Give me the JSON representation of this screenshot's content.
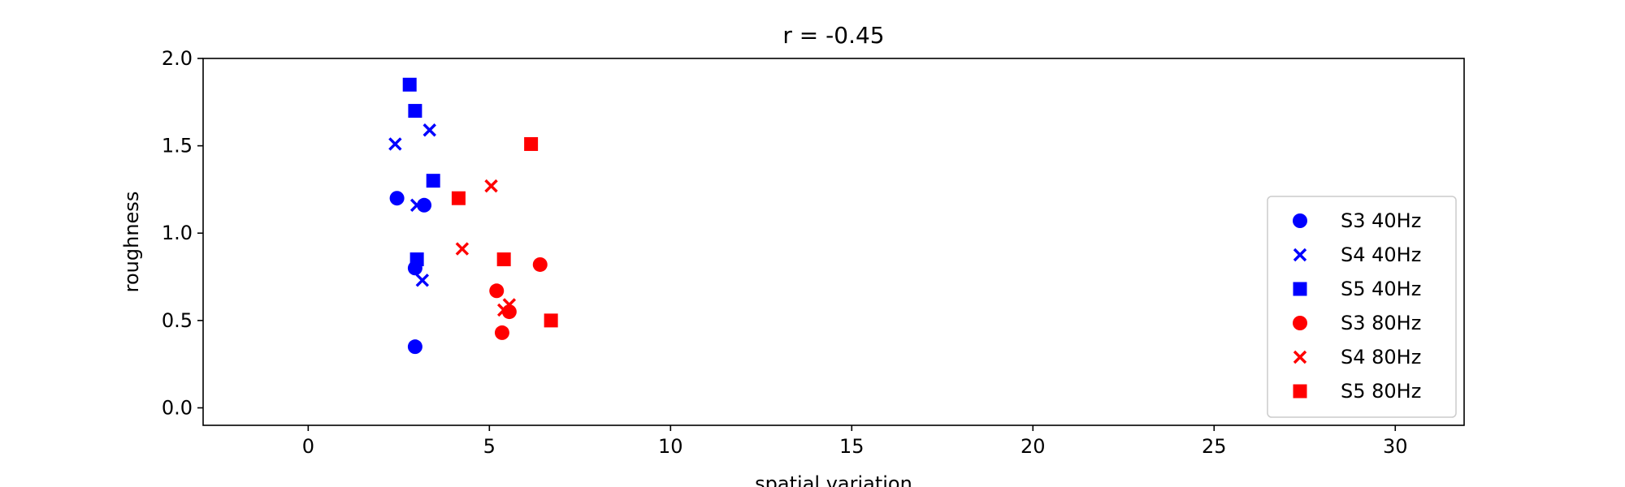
{
  "chart_data": {
    "type": "scatter",
    "title": "r = -0.45",
    "xlabel": "spatial variation",
    "ylabel": "roughness",
    "xlim": [
      -2.9,
      31.9
    ],
    "ylim": [
      -0.1,
      2.0
    ],
    "x_ticks": [
      0,
      5,
      10,
      15,
      20,
      25,
      30
    ],
    "y_ticks": [
      0.0,
      0.5,
      1.0,
      1.5,
      2.0
    ],
    "x_tick_labels": [
      "0",
      "5",
      "10",
      "15",
      "20",
      "25",
      "30"
    ],
    "y_tick_labels": [
      "0.0",
      "0.5",
      "1.0",
      "1.5",
      "2.0"
    ],
    "grid": false,
    "legend_position": "lower right",
    "series": [
      {
        "name": "S3 40Hz",
        "marker": "circle",
        "color": "#0000ff",
        "points": [
          [
            2.45,
            1.2
          ],
          [
            3.2,
            1.16
          ],
          [
            2.95,
            0.8
          ],
          [
            2.95,
            0.35
          ]
        ]
      },
      {
        "name": "S4 40Hz",
        "marker": "x",
        "color": "#0000ff",
        "points": [
          [
            2.4,
            1.51
          ],
          [
            3.35,
            1.59
          ],
          [
            3.0,
            1.16
          ],
          [
            3.15,
            0.73
          ]
        ]
      },
      {
        "name": "S5 40Hz",
        "marker": "square",
        "color": "#0000ff",
        "points": [
          [
            2.8,
            1.85
          ],
          [
            2.95,
            1.7
          ],
          [
            3.45,
            1.3
          ],
          [
            3.0,
            0.85
          ]
        ]
      },
      {
        "name": "S3 80Hz",
        "marker": "circle",
        "color": "#ff0000",
        "points": [
          [
            5.2,
            0.67
          ],
          [
            6.4,
            0.82
          ],
          [
            5.55,
            0.55
          ],
          [
            5.35,
            0.43
          ]
        ]
      },
      {
        "name": "S4 80Hz",
        "marker": "x",
        "color": "#ff0000",
        "points": [
          [
            5.05,
            1.27
          ],
          [
            4.25,
            0.91
          ],
          [
            5.55,
            0.59
          ],
          [
            5.4,
            0.56
          ]
        ]
      },
      {
        "name": "S5 80Hz",
        "marker": "square",
        "color": "#ff0000",
        "points": [
          [
            6.15,
            1.51
          ],
          [
            4.15,
            1.2
          ],
          [
            5.4,
            0.85
          ],
          [
            6.7,
            0.5
          ]
        ]
      }
    ]
  }
}
